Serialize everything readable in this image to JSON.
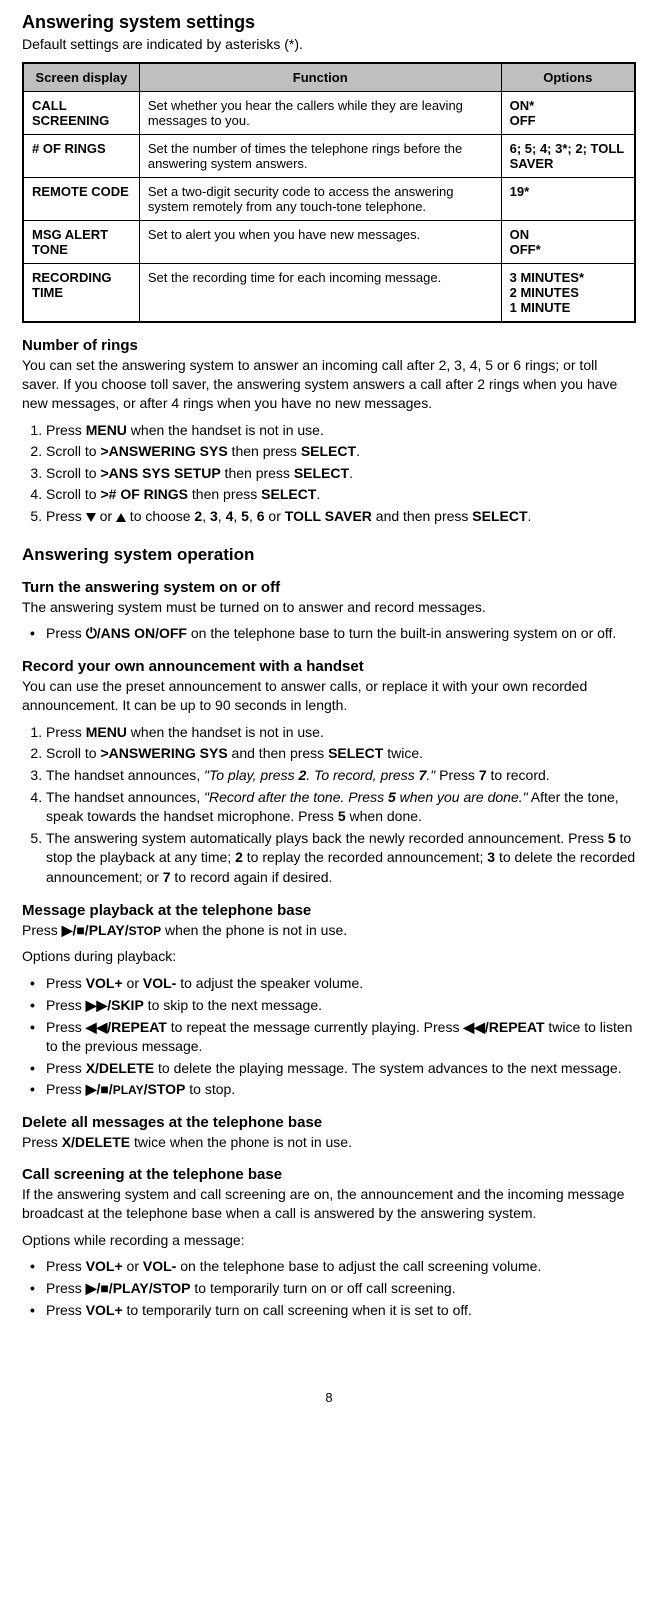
{
  "title": "Answering system settings",
  "subtitle": "Default settings are indicated by asterisks (*).",
  "table": {
    "headers": [
      "Screen display",
      "Function",
      "Options"
    ],
    "rows": [
      {
        "c1": "CALL SCREENING",
        "c2": "Set whether you hear the callers while they are leaving messages to you.",
        "c3": "ON*\nOFF"
      },
      {
        "c1": "# OF RINGS",
        "c2": "Set the number of times the telephone rings before the answering system answers.",
        "c3": "6; 5; 4; 3*; 2; TOLL SAVER"
      },
      {
        "c1": "REMOTE CODE",
        "c2": "Set a two-digit security code to access the answering system remotely from any touch-tone telephone.",
        "c3": "19*"
      },
      {
        "c1": "MSG ALERT TONE",
        "c2": "Set to alert you when you have new messages.",
        "c3": "ON\nOFF*"
      },
      {
        "c1": "RECORDING TIME",
        "c2": "Set the recording time for each incoming message.",
        "c3": "3 MINUTES*\n2 MINUTES\n1 MINUTE"
      }
    ]
  },
  "rings": {
    "title": "Number of rings",
    "intro": "You can set the answering system to answer an incoming call after 2, 3, 4, 5 or 6 rings; or toll saver. If you choose toll saver, the answering system answers a call after 2 rings when you have new messages, or after 4 rings when you have no new messages.",
    "steps": {
      "s1a": "Press ",
      "s1b": "MENU",
      "s1c": " when the handset is not in use.",
      "s2a": "Scroll to ",
      "s2b": ">ANSWERING SYS",
      "s2c": " then press ",
      "s2d": "SELECT",
      "s2e": ".",
      "s3a": "Scroll to ",
      "s3b": ">ANS SYS SETUP",
      "s3c": " then press ",
      "s3d": "SELECT",
      "s3e": ".",
      "s4a": "Scroll to ",
      "s4b": "># OF RINGS",
      "s4c": " then press ",
      "s4d": "SELECT",
      "s4e": ".",
      "s5a": "Press ",
      "s5b": " or ",
      "s5c": " to choose ",
      "s5d": "2",
      "s5e": ", ",
      "s5f": "3",
      "s5g": ", ",
      "s5h": "4",
      "s5i": ", ",
      "s5j": "5",
      "s5k": ", ",
      "s5l": "6",
      "s5m": " or ",
      "s5n": "TOLL SAVER",
      "s5o": " and then press ",
      "s5p": "SELECT",
      "s5q": "."
    }
  },
  "op_title": "Answering system operation",
  "turn": {
    "title": "Turn the answering system on or off",
    "intro": "The answering system must be turned on to answer and record messages.",
    "b1a": "Press ",
    "b1b": "⏻/ANS ON/OFF",
    "b1c": " on the telephone base to turn the built-in answering system on or off."
  },
  "rec": {
    "title": "Record your own announcement with a handset",
    "intro": "You can use the preset announcement to answer calls, or replace it with your own recorded announcement. It can be up to 90 seconds in length.",
    "s1a": "Press ",
    "s1b": "MENU",
    "s1c": " when the handset is not in use.",
    "s2a": "Scroll to ",
    "s2b": ">ANSWERING SYS",
    "s2c": " and then press ",
    "s2d": "SELECT",
    "s2e": " twice.",
    "s3a": "The handset announces, ",
    "s3b": "\"To play, press ",
    "s3c": "2",
    "s3d": ". To record, press ",
    "s3e": "7",
    "s3f": ".\"",
    "s3g": " Press ",
    "s3h": "7",
    "s3i": " to record.",
    "s4a": "The handset announces, ",
    "s4b": "\"Record after the tone. Press ",
    "s4c": "5",
    "s4d": " when you are done.\"",
    "s4e": " After the tone, speak towards the handset microphone. Press ",
    "s4f": "5",
    "s4g": " when done.",
    "s5a": "The answering system automatically plays back the newly recorded announcement. Press ",
    "s5b": "5",
    "s5c": " to stop the playback at any time; ",
    "s5d": "2",
    "s5e": " to replay the recorded announcement; ",
    "s5f": "3",
    "s5g": " to delete the recorded announcement; or ",
    "s5h": "7",
    "s5i": " to record again if desired."
  },
  "play": {
    "title": "Message playback at the telephone base",
    "la": "Press ",
    "lb": "▶/■/PLAY/",
    "lc": "STOP",
    "ld": " when the phone is not in use.",
    "subhead": "Options during playback:",
    "b1a": "Press ",
    "b1b": "VOL+",
    "b1c": " or ",
    "b1d": "VOL-",
    "b1e": " to adjust the speaker volume.",
    "b2a": "Press ",
    "b2b": "▶▶/SKIP",
    "b2c": " to skip to the next message.",
    "b3a": "Press ",
    "b3b": "◀◀/REPEAT",
    "b3c": " to repeat the message currently playing. Press ",
    "b3d": "◀◀/REPEAT",
    "b3e": " twice to listen to the previous message.",
    "b4a": "Press ",
    "b4b": "X/DELETE",
    "b4c": " to delete the playing message. The system advances to the next message.",
    "b5a": "Press ",
    "b5b": "▶/■/",
    "b5c": "PLAY",
    "b5d": "/STOP",
    "b5e": " to stop."
  },
  "del": {
    "title": "Delete all messages at the telephone base",
    "la": "Press ",
    "lb": "X/DELETE",
    "lc": " twice when the phone is not in use."
  },
  "scr": {
    "title": "Call screening at the telephone base",
    "intro": "If the answering system and call screening are on, the announcement and the incoming message broadcast at the telephone base when a call is answered by the answering system.",
    "subhead": "Options while recording a message:",
    "b1a": "Press ",
    "b1b": "VOL+",
    "b1c": " or ",
    "b1d": "VOL-",
    "b1e": " on the telephone base to adjust the call screening volume.",
    "b2a": "Press ",
    "b2b": "▶/■/PLAY/STOP",
    "b2c": " to temporarily turn on or off call screening.",
    "b3a": "Press ",
    "b3b": "VOL+",
    "b3c": " to temporarily turn on call screening when it is set to off."
  },
  "pagenum": "8"
}
